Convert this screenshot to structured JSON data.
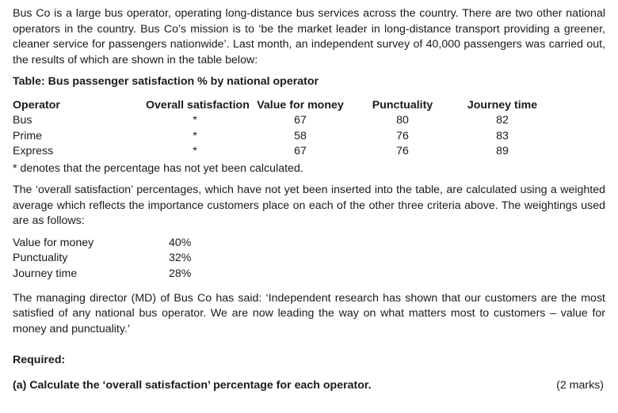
{
  "intro": "Bus Co is a large bus operator, operating long-distance bus services across the country. There are two other national operators in the country. Bus Co’s mission is to ‘be the market leader in long-distance transport providing a greener, cleaner service for passengers nationwide’. Last month, an independent survey of 40,000 passengers was carried out, the results of which are shown in the table below:",
  "table": {
    "title": "Table: Bus passenger satisfaction % by national operator",
    "headers": {
      "operator": "Operator",
      "overall": "Overall satisfaction",
      "value_for_money": "Value for money",
      "punctuality": "Punctuality",
      "journey_time": "Journey time"
    },
    "rows": [
      {
        "operator": "Bus",
        "overall": "*",
        "value_for_money": "67",
        "punctuality": "80",
        "journey_time": "82"
      },
      {
        "operator": "Prime",
        "overall": "*",
        "value_for_money": "58",
        "punctuality": "76",
        "journey_time": "83"
      },
      {
        "operator": "Express",
        "overall": "*",
        "value_for_money": "67",
        "punctuality": "76",
        "journey_time": "89"
      }
    ],
    "footnote": "* denotes that the percentage has not yet been calculated."
  },
  "weighting_intro": "The ‘overall satisfaction’ percentages, which have not yet been inserted into the table, are calculated using a weighted average which reflects the importance customers place on each of the other three criteria above. The weightings used are as follows:",
  "weightings": [
    {
      "label": "Value for money",
      "value": "40%"
    },
    {
      "label": "Punctuality",
      "value": "32%"
    },
    {
      "label": "Journey time",
      "value": "28%"
    }
  ],
  "md_quote": "The managing director (MD) of Bus Co has said: ‘Independent research has shown that our customers are the most satisfied of any national bus operator. We are now leading the way on what matters most to customers – value for money and punctuality.’",
  "required_label": "Required:",
  "question": {
    "text": "(a)  Calculate the ‘overall satisfaction’ percentage for each operator.",
    "marks": "(2 marks)"
  }
}
